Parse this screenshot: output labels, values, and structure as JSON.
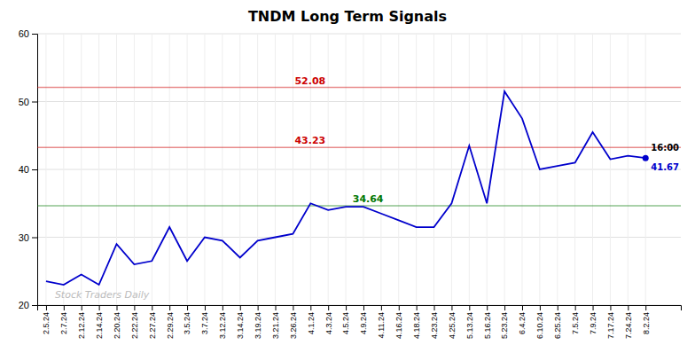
{
  "chart_data": {
    "type": "line",
    "title": "TNDM Long Term Signals",
    "categories": [
      "2.5.24",
      "2.7.24",
      "2.12.24",
      "2.14.24",
      "2.20.24",
      "2.22.24",
      "2.27.24",
      "2.29.24",
      "3.5.24",
      "3.7.24",
      "3.12.24",
      "3.14.24",
      "3.19.24",
      "3.21.24",
      "3.26.24",
      "4.1.24",
      "4.3.24",
      "4.5.24",
      "4.9.24",
      "4.11.24",
      "4.16.24",
      "4.18.24",
      "4.23.24",
      "4.25.24",
      "5.13.24",
      "5.16.24",
      "5.23.24",
      "6.4.24",
      "6.10.24",
      "6.25.24",
      "7.5.24",
      "7.9.24",
      "7.17.24",
      "7.24.24",
      "8.2.24"
    ],
    "values": [
      23.5,
      23.0,
      24.5,
      23.0,
      29.0,
      26.0,
      26.5,
      31.5,
      26.5,
      30.0,
      29.5,
      27.0,
      29.5,
      30.0,
      30.5,
      35.0,
      34.0,
      34.5,
      34.5,
      33.5,
      32.5,
      31.5,
      31.5,
      35.0,
      43.5,
      35.0,
      51.5,
      47.5,
      40.0,
      40.5,
      41.0,
      45.5,
      41.5,
      42.0,
      41.67
    ],
    "color": "#0000cc",
    "ylim": [
      20,
      60
    ],
    "yticks": [
      20,
      30,
      40,
      50,
      60
    ],
    "grid": true,
    "hlines": [
      {
        "value": 52.08,
        "color": "#cc0000"
      },
      {
        "value": 43.23,
        "color": "#cc0000"
      },
      {
        "value": 34.64,
        "color": "#007700"
      }
    ],
    "annotations": [
      {
        "text": "16:00"
      },
      {
        "text": "Stock Traders Daily"
      }
    ]
  }
}
